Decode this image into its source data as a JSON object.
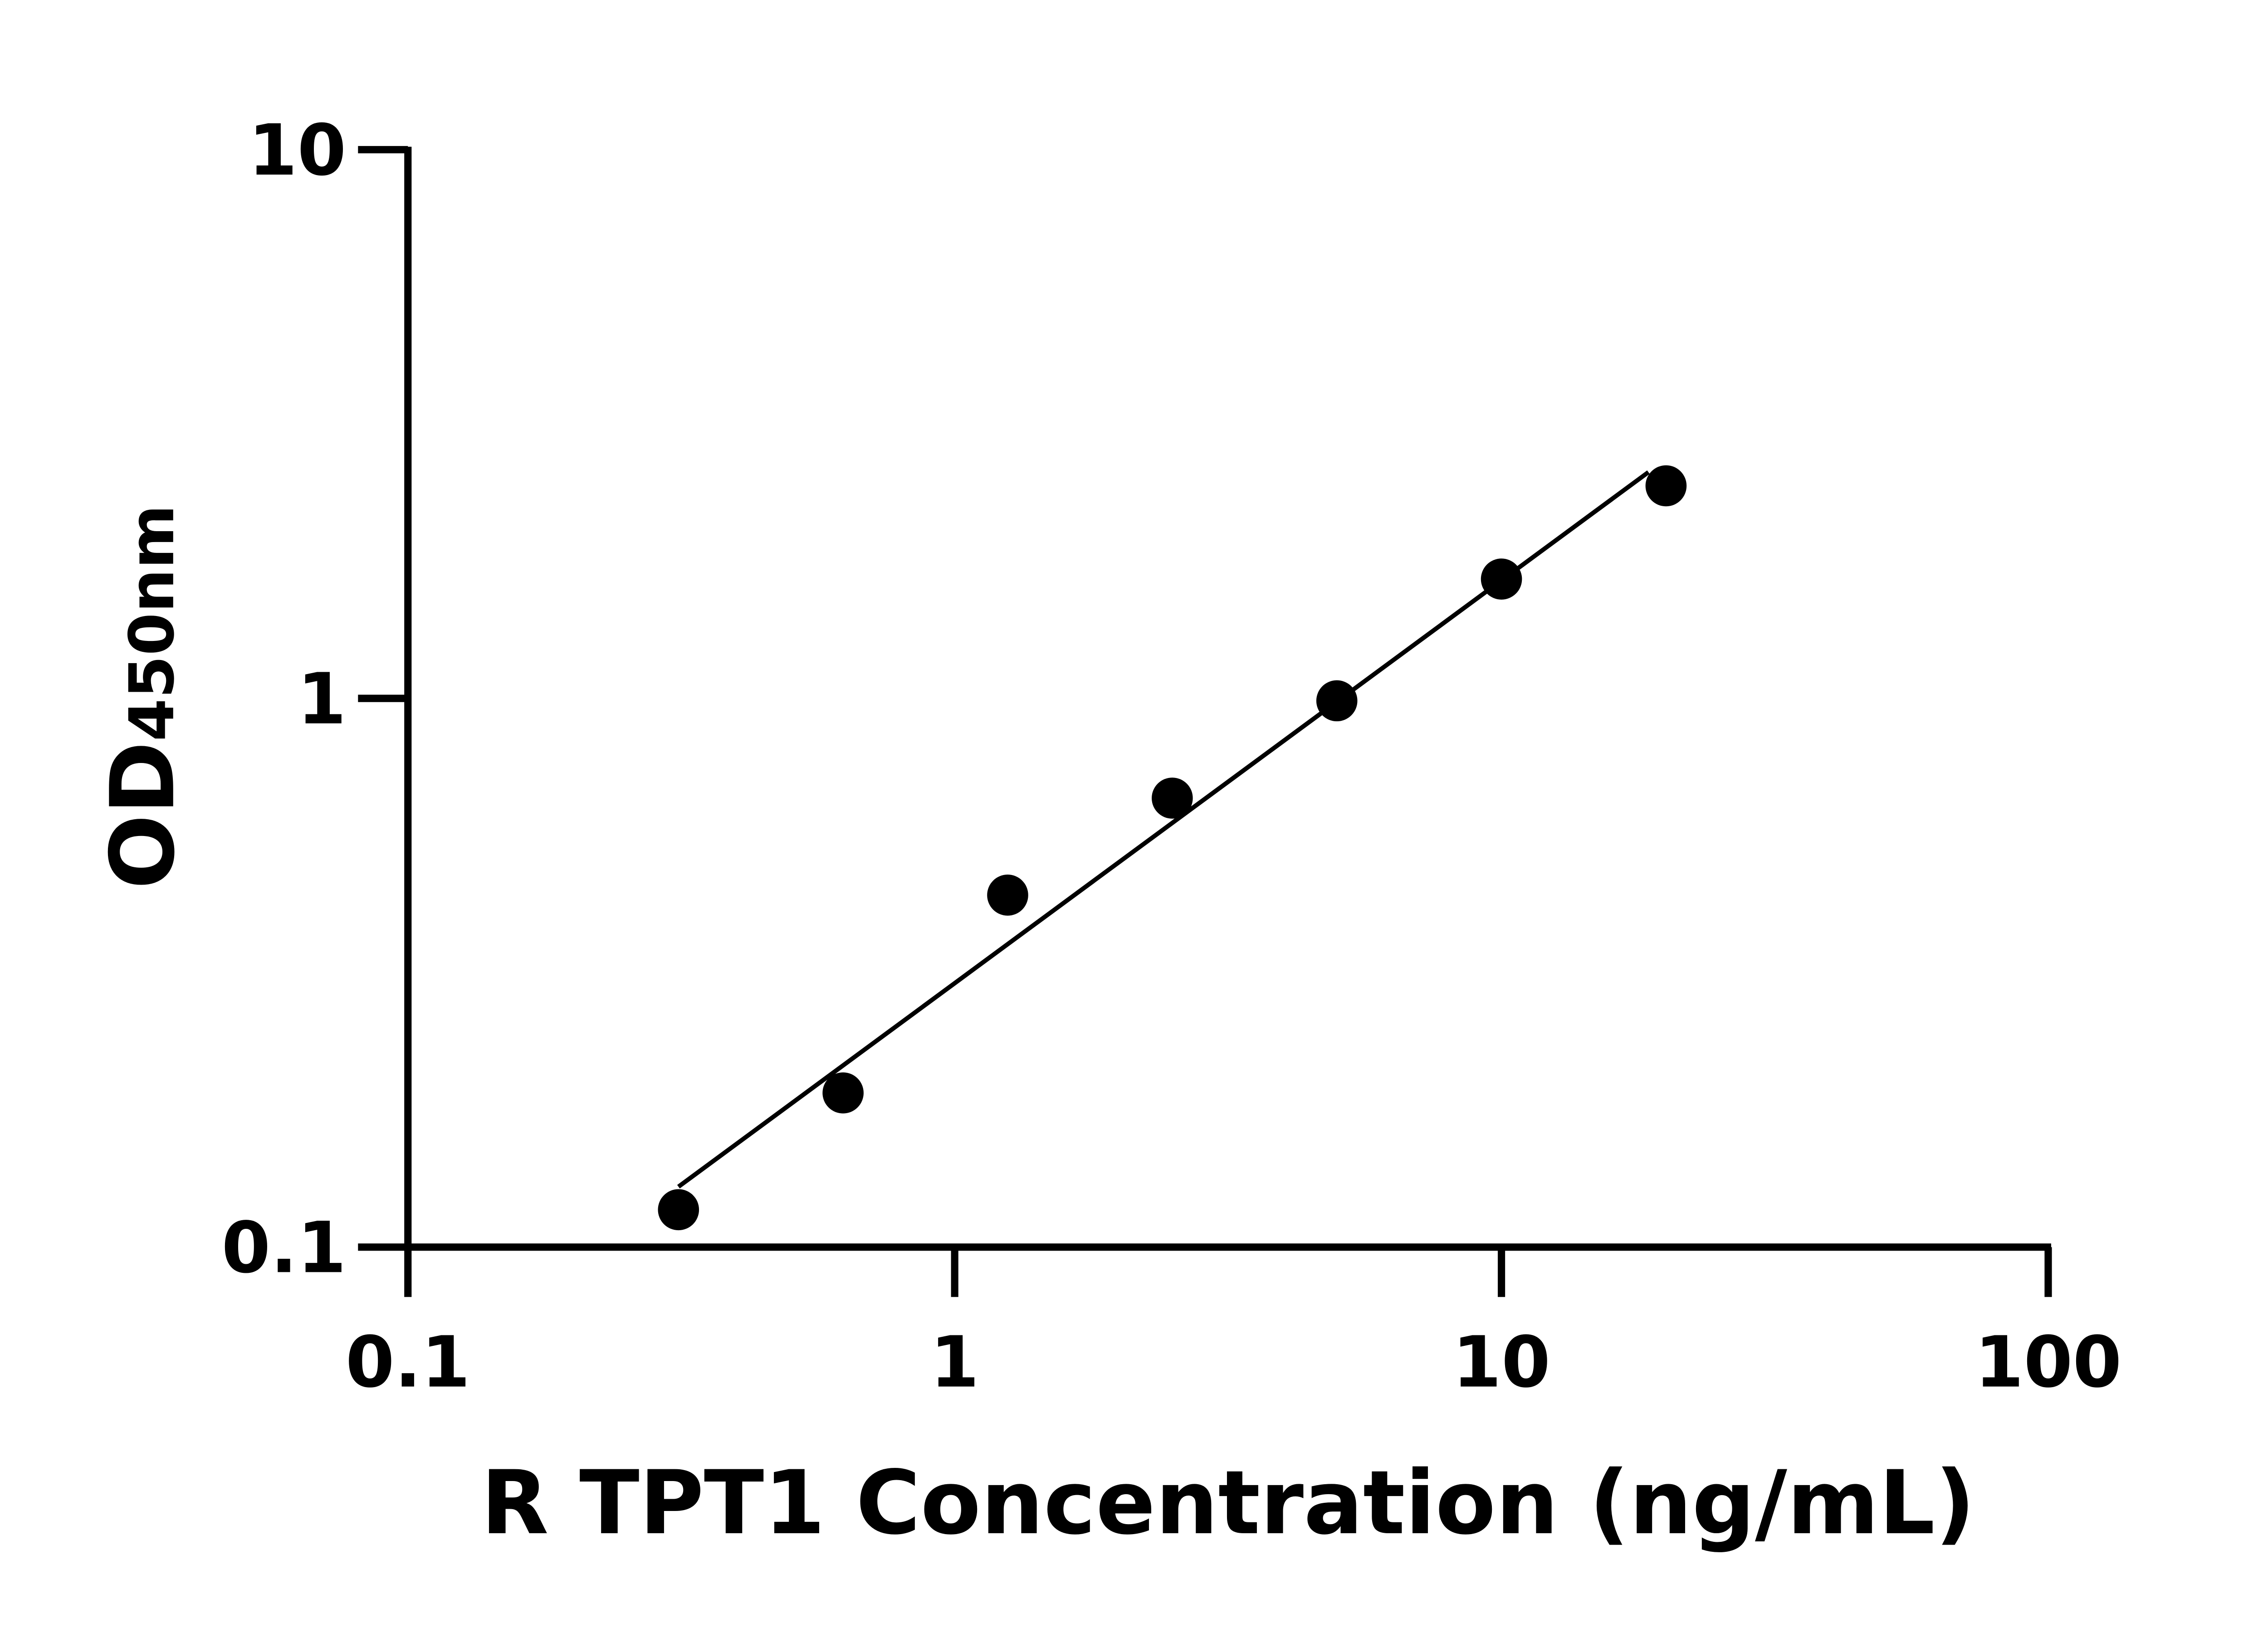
{
  "chart_data": {
    "type": "scatter",
    "title": "",
    "xlabel": "R TPT1 Concentration (ng/mL)",
    "ylabel_main": "OD",
    "ylabel_sub": "450nm",
    "x_scale": "log",
    "y_scale": "log",
    "xlim": [
      0.1,
      100
    ],
    "ylim": [
      0.1,
      10
    ],
    "x_ticks": [
      "0.1",
      "1",
      "10",
      "100"
    ],
    "y_ticks": [
      "0.1",
      "1",
      "10"
    ],
    "grid": false,
    "fit": "linear fit in log-log",
    "color": "#000000",
    "points": [
      {
        "x": 0.3125,
        "y": 0.117
      },
      {
        "x": 0.625,
        "y": 0.191
      },
      {
        "x": 1.25,
        "y": 0.438
      },
      {
        "x": 2.5,
        "y": 0.658
      },
      {
        "x": 5,
        "y": 0.99
      },
      {
        "x": 10,
        "y": 1.65
      },
      {
        "x": 20,
        "y": 2.44
      }
    ]
  }
}
